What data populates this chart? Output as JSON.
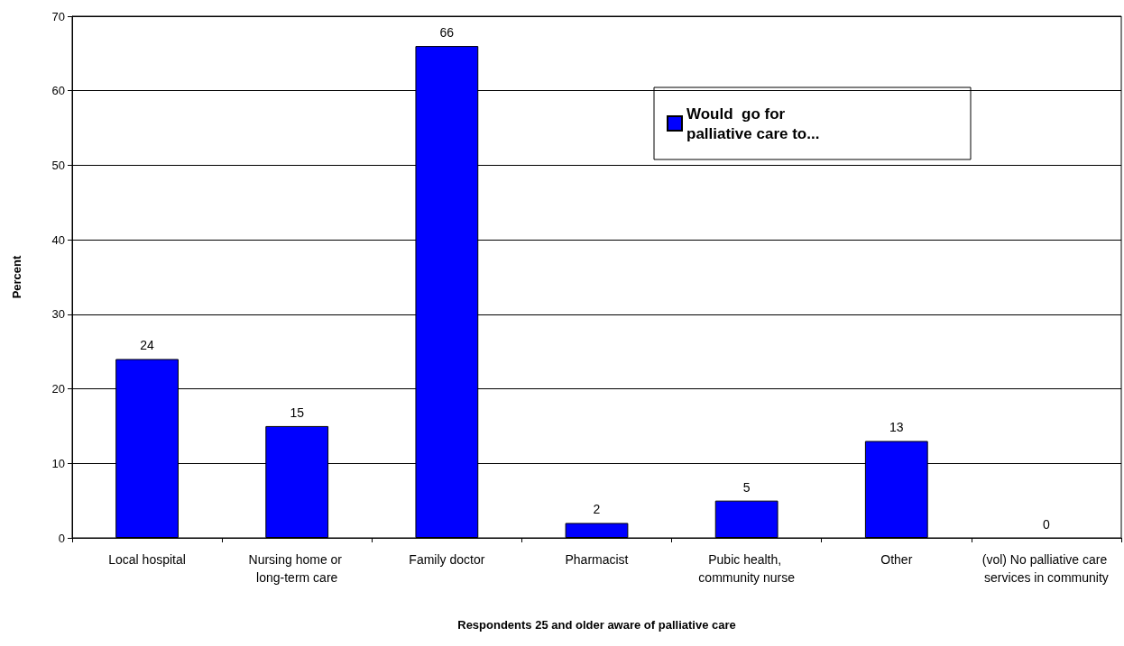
{
  "chart_data": {
    "type": "bar",
    "xlabel": "Respondents 25 and older aware of palliative care",
    "ylabel": "Percent",
    "categories": [
      "Local hospital",
      "Nursing home or long-term care",
      "Family doctor",
      "Pharmacist",
      "Pubic health, community nurse",
      "Other",
      "(vol) No palliative care services in community"
    ],
    "series": [
      {
        "name": "Would  go for palliative care to...",
        "color": "#0000ff",
        "values": [
          24,
          15,
          66,
          2,
          5,
          13,
          0
        ]
      }
    ],
    "ylim": [
      0,
      70
    ],
    "yticks": [
      0,
      10,
      20,
      30,
      40,
      50,
      60,
      70
    ],
    "grid": "y",
    "legend": "top right",
    "data_labels": true
  }
}
